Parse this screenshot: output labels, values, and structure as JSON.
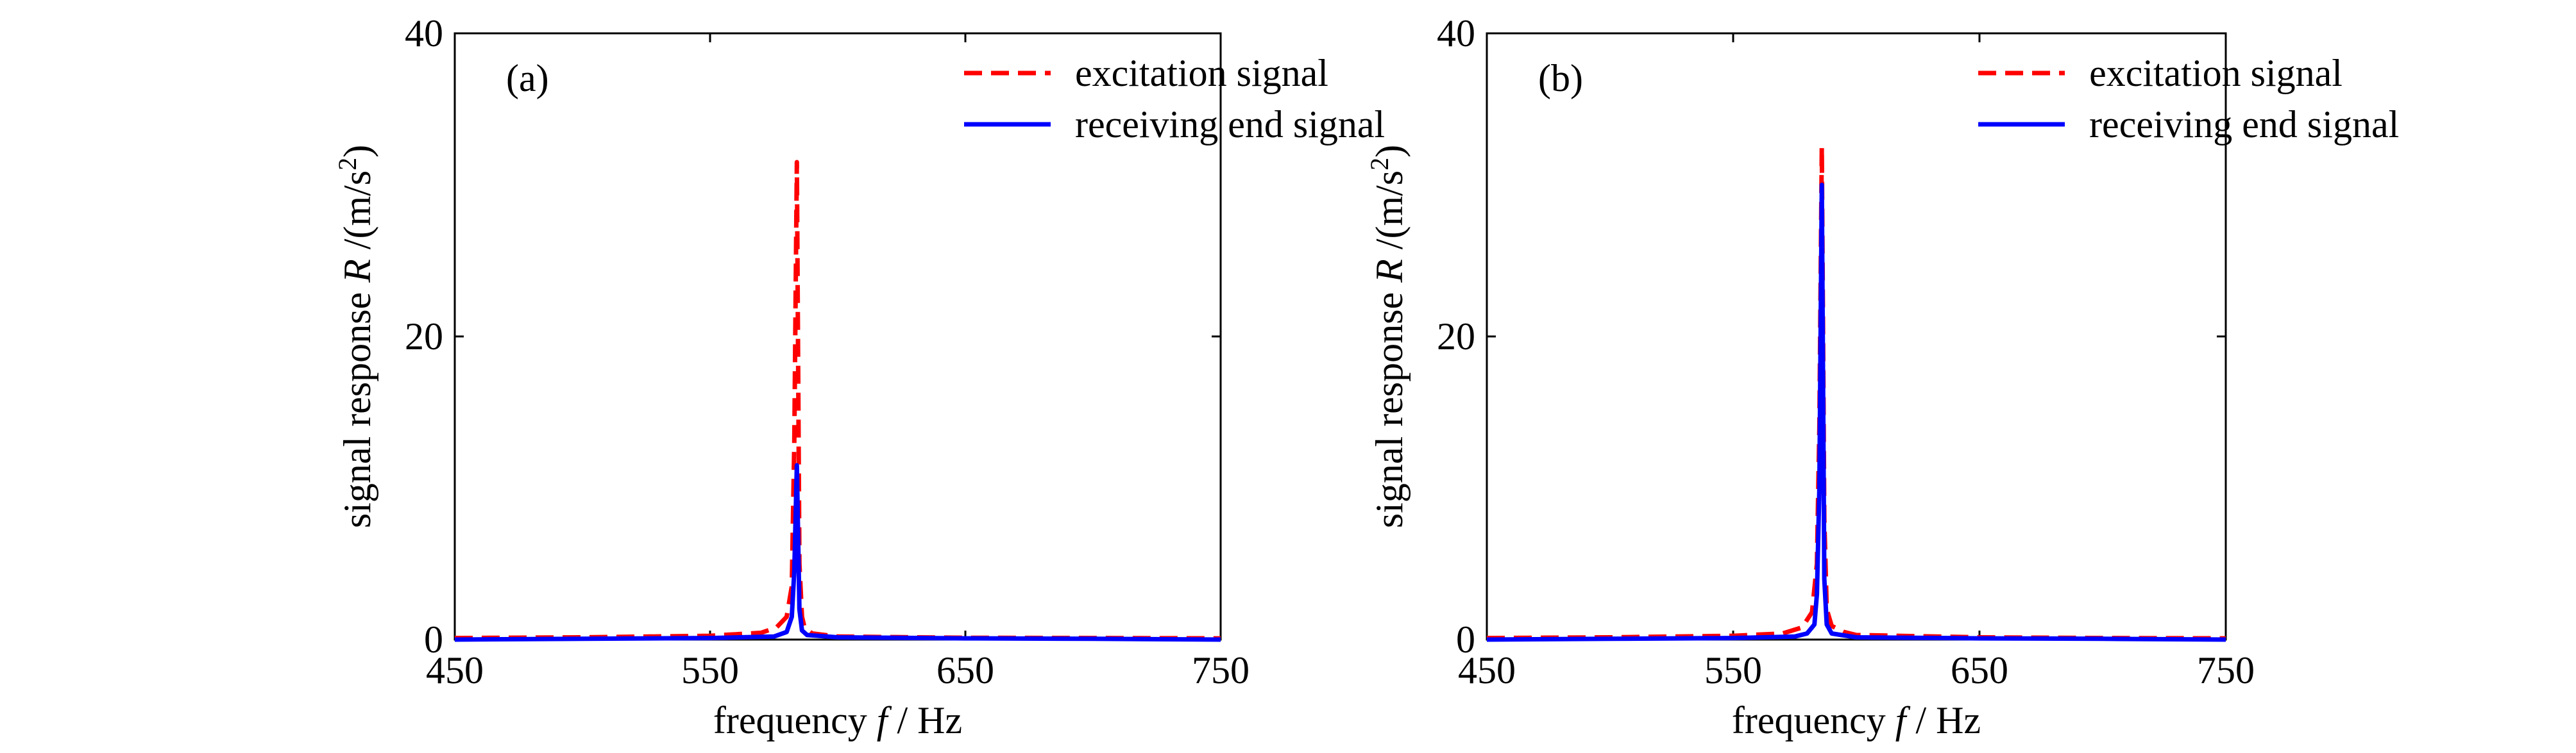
{
  "colors": {
    "excitation": "#ff0000",
    "receiving": "#0000ff",
    "axis": "#000000"
  },
  "chart_data": [
    {
      "type": "line",
      "panel_label": "(a)",
      "xlabel": {
        "prefix": "frequency ",
        "var": "f",
        "suffix": " / Hz"
      },
      "ylabel": {
        "prefix": "signal response ",
        "var": "R",
        "unit_pre": " /(m/s",
        "unit_sup": "2",
        "unit_post": ")"
      },
      "xlim": [
        450,
        750
      ],
      "ylim": [
        0,
        40
      ],
      "xticks": [
        450,
        550,
        650,
        750
      ],
      "yticks": [
        0,
        20,
        40
      ],
      "grid": false,
      "legend_position": "top-right",
      "series": [
        {
          "name": "excitation signal",
          "style": "dashed",
          "color": "#ff0000",
          "x": [
            450,
            500,
            550,
            570,
            576,
            580,
            582,
            583,
            584,
            585,
            586,
            587,
            590,
            600,
            650,
            700,
            750
          ],
          "y": [
            0.1,
            0.15,
            0.25,
            0.45,
            0.8,
            1.5,
            3.5,
            13.0,
            31.5,
            5.0,
            1.5,
            0.8,
            0.4,
            0.2,
            0.12,
            0.1,
            0.08
          ]
        },
        {
          "name": "receiving end signal",
          "style": "solid",
          "color": "#0000ff",
          "x": [
            450,
            500,
            550,
            575,
            580,
            582,
            583,
            584,
            585,
            586,
            588,
            600,
            650,
            700,
            750
          ],
          "y": [
            0.0,
            0.05,
            0.1,
            0.2,
            0.5,
            1.5,
            4.5,
            11.5,
            2.0,
            0.6,
            0.3,
            0.15,
            0.08,
            0.05,
            0.0
          ]
        }
      ]
    },
    {
      "type": "line",
      "panel_label": "(b)",
      "xlabel": {
        "prefix": "frequency ",
        "var": "f",
        "suffix": " / Hz"
      },
      "ylabel": {
        "prefix": "signal response ",
        "var": "R",
        "unit_pre": " /(m/s",
        "unit_sup": "2",
        "unit_post": ")"
      },
      "xlim": [
        450,
        750
      ],
      "ylim": [
        0,
        40
      ],
      "xticks": [
        450,
        550,
        650,
        750
      ],
      "yticks": [
        0,
        20,
        40
      ],
      "grid": false,
      "legend_position": "top-right",
      "series": [
        {
          "name": "excitation signal",
          "style": "dashed",
          "color": "#ff0000",
          "x": [
            450,
            500,
            550,
            570,
            578,
            582,
            584,
            585,
            586,
            587,
            588,
            590,
            595,
            600,
            650,
            700,
            750
          ],
          "y": [
            0.1,
            0.15,
            0.25,
            0.4,
            0.8,
            1.8,
            5.0,
            14.0,
            32.5,
            8.0,
            2.0,
            0.9,
            0.5,
            0.3,
            0.15,
            0.1,
            0.08
          ]
        },
        {
          "name": "receiving end signal",
          "style": "solid",
          "color": "#0000ff",
          "x": [
            450,
            500,
            550,
            575,
            580,
            583,
            584,
            585,
            586,
            587,
            588,
            590,
            600,
            650,
            700,
            750
          ],
          "y": [
            0.0,
            0.05,
            0.1,
            0.2,
            0.4,
            1.0,
            3.0,
            10.0,
            30.0,
            4.0,
            1.0,
            0.4,
            0.15,
            0.08,
            0.05,
            0.0
          ]
        }
      ]
    }
  ]
}
